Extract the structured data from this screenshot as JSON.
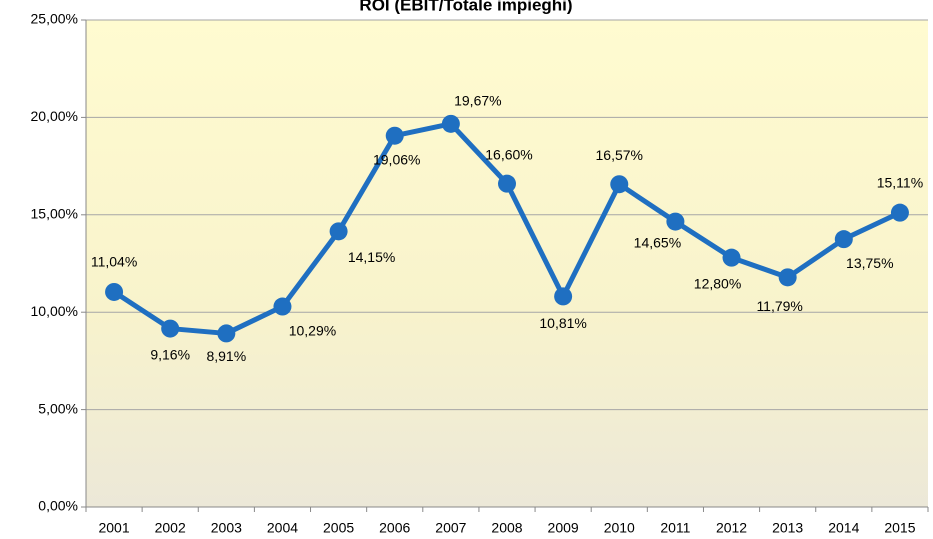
{
  "chart_data": {
    "type": "line",
    "title": "ROI (EBIT/Totale impieghi)",
    "categories": [
      "2001",
      "2002",
      "2003",
      "2004",
      "2005",
      "2006",
      "2007",
      "2008",
      "2009",
      "2010",
      "2011",
      "2012",
      "2013",
      "2014",
      "2015"
    ],
    "series": [
      {
        "name": "ROI",
        "color": "#1f6fc1",
        "values": [
          11.04,
          9.16,
          8.91,
          10.29,
          14.15,
          19.06,
          19.67,
          16.6,
          10.81,
          16.57,
          14.65,
          12.8,
          11.79,
          13.75,
          15.11
        ],
        "value_labels": [
          "11,04%",
          "9,16%",
          "8,91%",
          "10,29%",
          "14,15%",
          "19,06%",
          "19,67%",
          "16,60%",
          "10,81%",
          "16,57%",
          "14,65%",
          "12,80%",
          "11,79%",
          "13,75%",
          "15,11%"
        ]
      }
    ],
    "ylim": [
      0,
      25
    ],
    "yticks": [
      {
        "value": 0,
        "label": "0,00%"
      },
      {
        "value": 5,
        "label": "5,00%"
      },
      {
        "value": 10,
        "label": "10,00%"
      },
      {
        "value": 15,
        "label": "15,00%"
      },
      {
        "value": 20,
        "label": "20,00%"
      },
      {
        "value": 25,
        "label": "25,00%"
      }
    ],
    "grid": true
  }
}
